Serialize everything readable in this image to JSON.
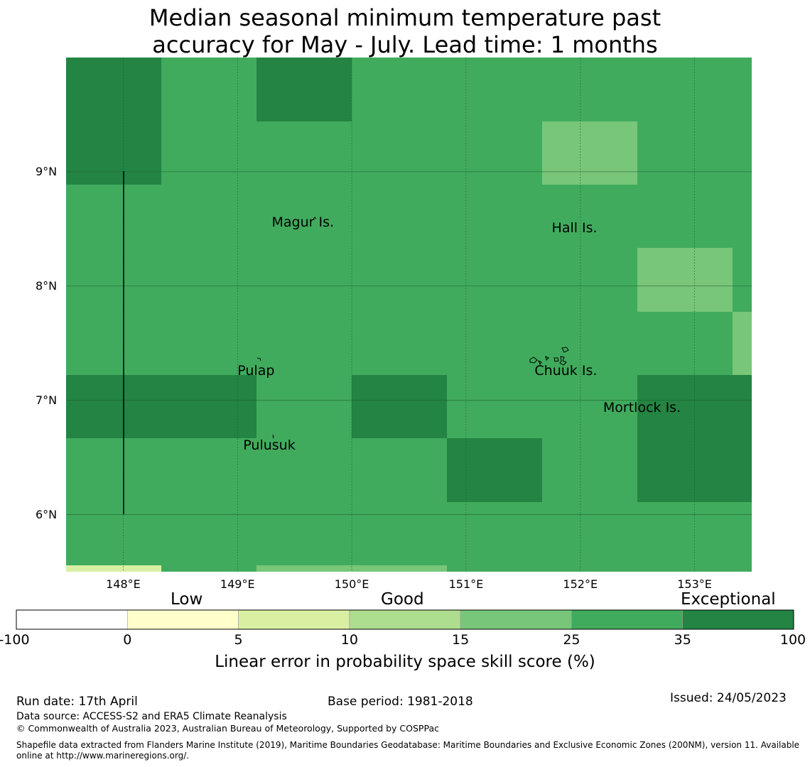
{
  "title": {
    "line1": "Median seasonal minimum temperature past",
    "line2": "accuracy for May - July. Lead time: 1 months"
  },
  "map": {
    "lon_range": [
      147.5,
      153.5
    ],
    "lat_range": [
      5.5,
      10.0
    ],
    "lat_ticks": [
      {
        "value": 9,
        "label": "9°N"
      },
      {
        "value": 8,
        "label": "8°N"
      },
      {
        "value": 7,
        "label": "7°N"
      },
      {
        "value": 6,
        "label": "6°N"
      }
    ],
    "lon_ticks": [
      {
        "value": 148,
        "label": "148°E"
      },
      {
        "value": 149,
        "label": "149°E"
      },
      {
        "value": 150,
        "label": "150°E"
      },
      {
        "value": 151,
        "label": "151°E"
      },
      {
        "value": 152,
        "label": "152°E"
      },
      {
        "value": 153,
        "label": "153°E"
      }
    ],
    "grid_lines": true,
    "places": [
      {
        "name": "Magur Is.",
        "lon": 149.3,
        "lat": 8.55
      },
      {
        "name": "Hall Is.",
        "lon": 151.75,
        "lat": 8.5
      },
      {
        "name": "Pulap",
        "lon": 149.0,
        "lat": 7.25
      },
      {
        "name": "Chuuk Is.",
        "lon": 151.6,
        "lat": 7.25
      },
      {
        "name": "Mortlock Is.",
        "lon": 152.2,
        "lat": 6.93
      },
      {
        "name": "Pulusuk",
        "lon": 149.05,
        "lat": 6.6
      }
    ],
    "colors": {
      "exceptional": "#238443",
      "good_high": "#41ab5d",
      "good_mid": "#78c679",
      "low_high": "#d9f0a3",
      "low": "#ffffcc",
      "grid": "#1a5e2c"
    }
  },
  "legend": {
    "categories": [
      {
        "label": "Low"
      },
      {
        "label": "Good"
      },
      {
        "label": "Exceptional"
      }
    ],
    "ticks": [
      "-100",
      "0",
      "5",
      "10",
      "15",
      "25",
      "35",
      "100"
    ],
    "bins": [
      {
        "from": -100,
        "to": 0,
        "color": "#ffffff"
      },
      {
        "from": 0,
        "to": 5,
        "color": "#ffffcc"
      },
      {
        "from": 5,
        "to": 10,
        "color": "#d9f0a3"
      },
      {
        "from": 10,
        "to": 15,
        "color": "#addd8e"
      },
      {
        "from": 15,
        "to": 25,
        "color": "#78c679"
      },
      {
        "from": 25,
        "to": 35,
        "color": "#41ab5d"
      },
      {
        "from": 35,
        "to": 100,
        "color": "#238443"
      }
    ],
    "title": "Linear error in probability space skill score (%)"
  },
  "footer": {
    "run_date": "Run date: 17th April",
    "base_period": "Base period: 1981-2018",
    "issued": "Issued: 24/05/2023",
    "data_source": "Data source: ACCESS-S2 and ERA5 Climate Reanalysis",
    "copyright": "© Commonwealth of Australia 2023, Australian Bureau of Meteorology, Supported by COSPPac",
    "shapefile_line1": "Shapefile data extracted from Flanders Marine Institute (2019), Maritime Boundaries Geodatabase: Maritime Boundaries and Exclusive Economic Zones (200NM), version 11. Available",
    "shapefile_line2": "online at http://www.marineregions.org/."
  }
}
